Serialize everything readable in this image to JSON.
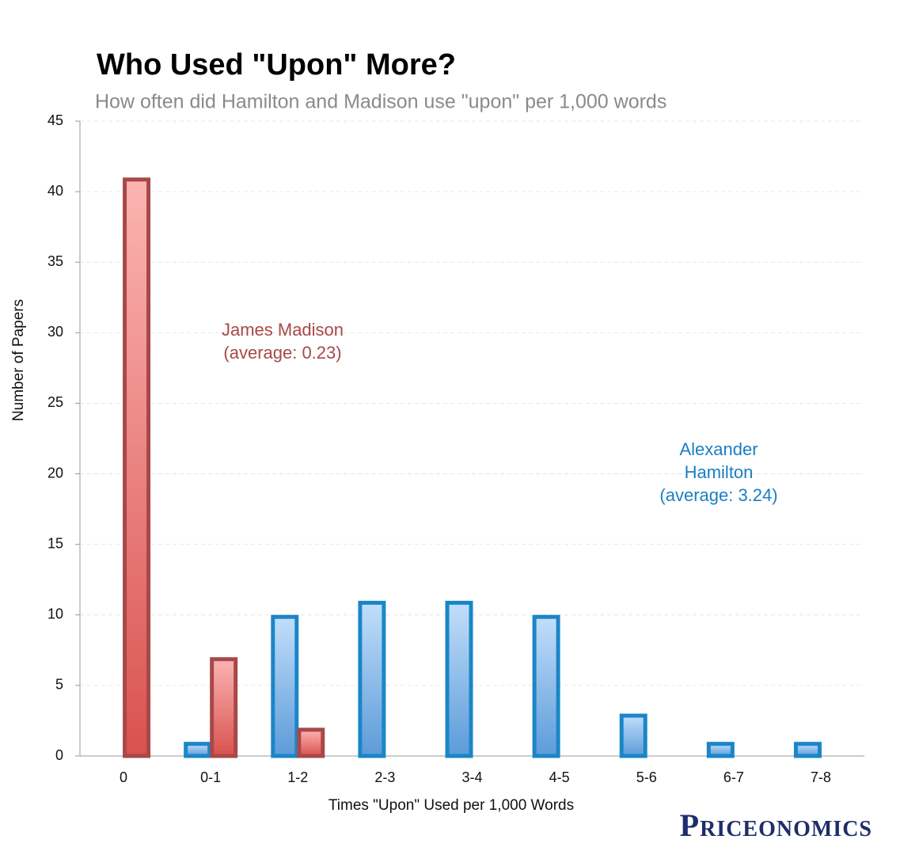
{
  "chart_data": {
    "type": "bar",
    "title": "Who Used \"Upon\" More?",
    "subtitle": "How often did Hamilton and Madison use \"upon\" per 1,000 words",
    "x_label": "Times \"Upon\" Used per 1,000 Words",
    "y_label": "Number of Papers",
    "categories": [
      "0",
      "0-1",
      "1-2",
      "2-3",
      "3-4",
      "4-5",
      "5-6",
      "6-7",
      "7-8"
    ],
    "series": [
      {
        "color": "#1a86c8",
        "values": [
          0,
          1,
          10,
          11,
          11,
          10,
          3,
          1,
          1
        ]
      },
      {
        "color": "#a84848",
        "values": [
          41,
          7,
          2,
          0,
          0,
          0,
          0,
          0,
          0
        ]
      }
    ],
    "annotations": [
      {
        "lines": [
          "James Madison",
          "(average: 0.23)"
        ],
        "color": "#a84848"
      },
      {
        "lines": [
          "Alexander",
          "Hamilton",
          "(average: 3.24)"
        ],
        "color": "#1a7fc1"
      }
    ],
    "ylim": [
      0,
      45
    ],
    "yticks": [
      0,
      5,
      10,
      15,
      20,
      25,
      30,
      35,
      40,
      45
    ],
    "grid": true,
    "source": "Priceonomics"
  }
}
